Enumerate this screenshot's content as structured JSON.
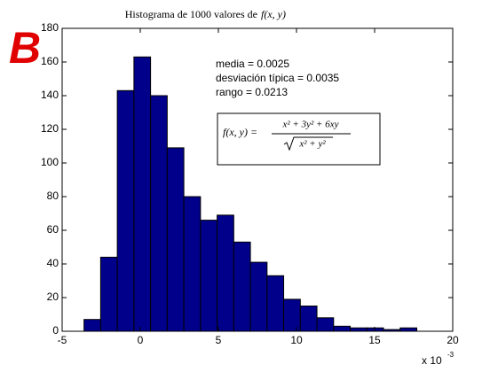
{
  "chart_data": {
    "type": "histogram",
    "title": "Histograma de 1000 valores de",
    "title_math": "f(x, y)",
    "panel_label": "B",
    "annotations": [
      "media = 0.0025",
      "desviación típica = 0.0035",
      "rango = 0.0213"
    ],
    "formula": {
      "lhs": "f(x, y) =",
      "numerator": "x² + 3y² + 6xy",
      "denominator": "x² + y²"
    },
    "x_multiplier": "x 10",
    "x_multiplier_exponent": "-3",
    "bins": [
      -3.6,
      -2.535,
      -1.47,
      -0.405,
      0.66,
      1.725,
      2.79,
      3.855,
      4.92,
      5.985,
      7.05,
      8.115,
      9.18,
      10.245,
      11.31,
      12.375,
      13.44,
      14.505,
      15.57,
      16.635,
      17.7
    ],
    "values": [
      7,
      44,
      143,
      163,
      140,
      109,
      80,
      66,
      69,
      53,
      41,
      33,
      19,
      15,
      8,
      3,
      2,
      2,
      1,
      2
    ],
    "color": "#00008b",
    "xlim": [
      -5,
      20
    ],
    "xticks": [
      -5,
      0,
      5,
      10,
      15,
      20
    ],
    "ylim": [
      0,
      180
    ],
    "yticks": [
      0,
      20,
      40,
      60,
      80,
      100,
      120,
      140,
      160,
      180
    ],
    "grid": false
  }
}
